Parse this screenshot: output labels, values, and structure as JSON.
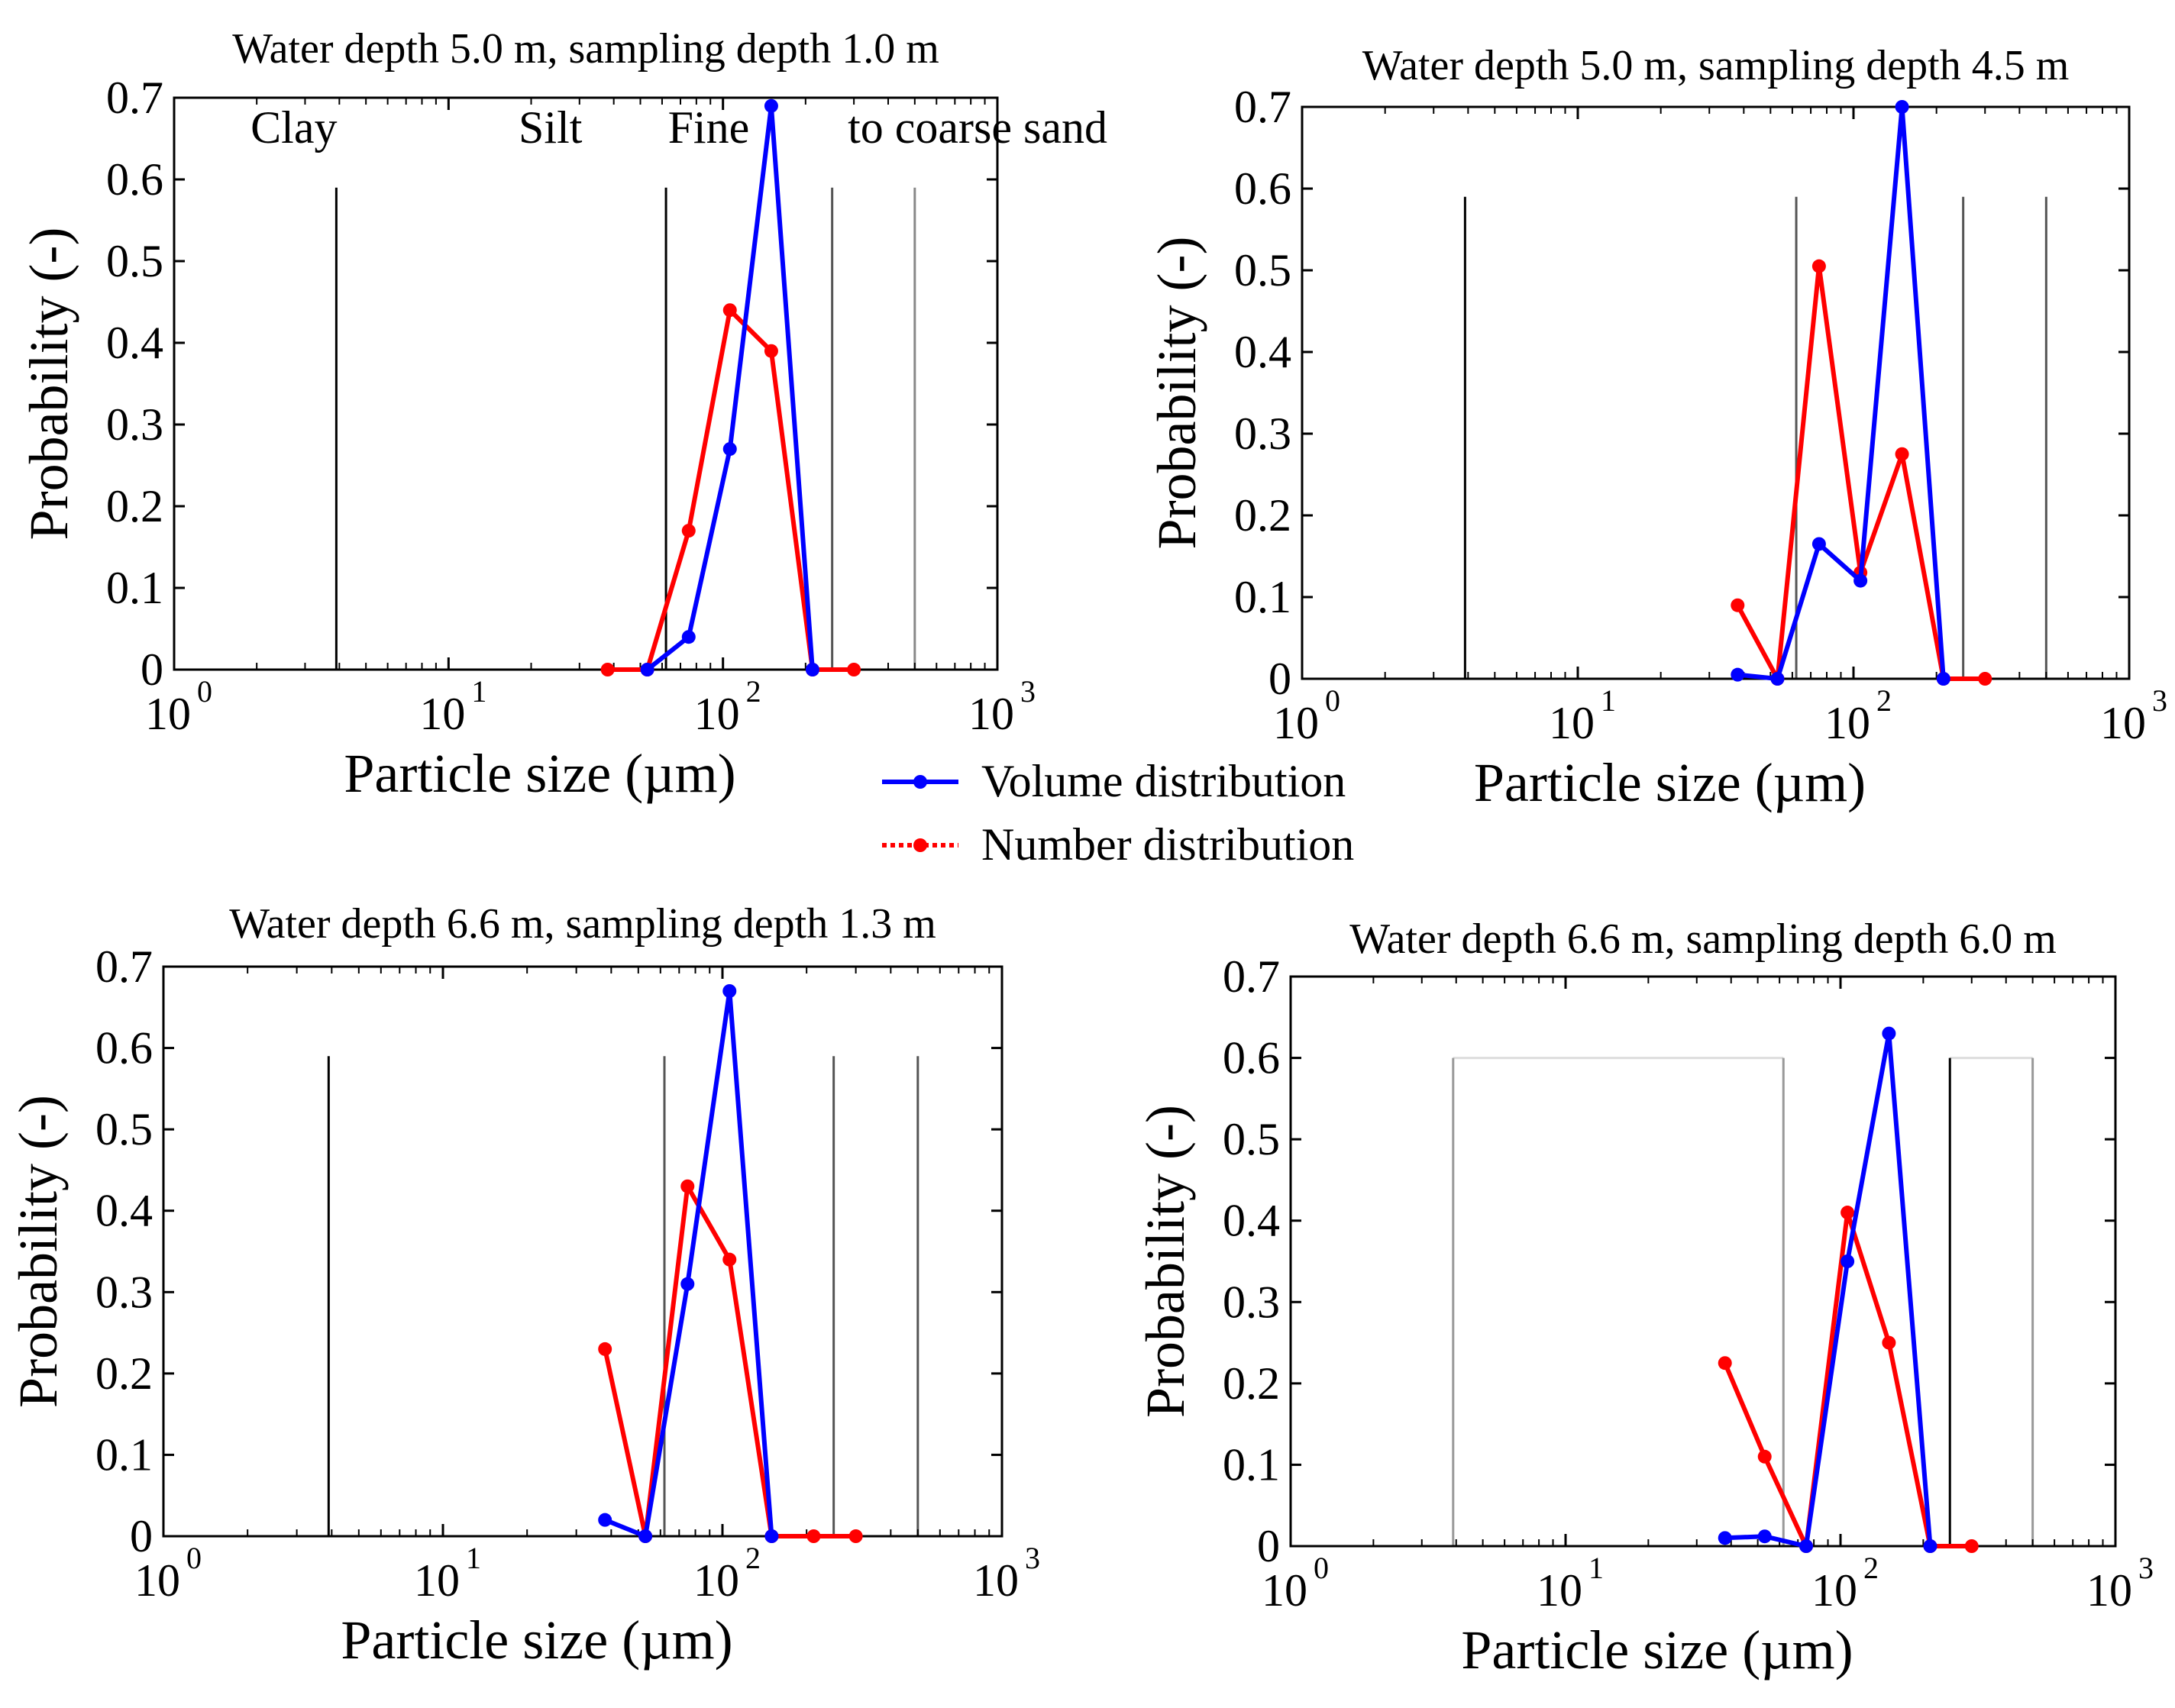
{
  "legend": {
    "items": [
      {
        "label": "Volume distribution",
        "color": "#0000ff",
        "style": "solid"
      },
      {
        "label": "Number distribution",
        "color": "#ff0000",
        "style": "dotted"
      }
    ]
  },
  "chart_data": [
    {
      "type": "line",
      "title": "Water depth 5.0 m, sampling depth 1.0 m",
      "xlabel": "Particle size (µm)",
      "ylabel": "Probability (-)",
      "xscale": "log",
      "xlim": [
        1,
        1000
      ],
      "ylim": [
        0,
        0.7
      ],
      "x_ticks": [
        {
          "base": "10",
          "exp": "0"
        },
        {
          "base": "10",
          "exp": "1"
        },
        {
          "base": "10",
          "exp": "2"
        },
        {
          "base": "10",
          "exp": "3"
        }
      ],
      "y_ticks": [
        "0",
        "0.1",
        "0.2",
        "0.3",
        "0.4",
        "0.5",
        "0.6",
        "0.7"
      ],
      "boundaries": [
        {
          "x": 3.9,
          "ymax": 0.59,
          "color": "#000000"
        },
        {
          "x": 62,
          "ymax": 0.59,
          "color": "#000000"
        },
        {
          "x": 250,
          "ymax": 0.59,
          "color": "#555555"
        },
        {
          "x": 500,
          "ymax": 0.59,
          "color": "#888888"
        }
      ],
      "annotations": [
        {
          "text": "Clay",
          "x": 1.9,
          "y": 0.645
        },
        {
          "text": "Silt",
          "x": 18,
          "y": 0.645
        },
        {
          "text": "Fine",
          "x": 63,
          "y": 0.645
        },
        {
          "text": "to coarse sand",
          "x": 285,
          "y": 0.645
        }
      ],
      "series": [
        {
          "name": "Volume distribution",
          "color": "#0000ff",
          "x": [
            53,
            75,
            106,
            150,
            212
          ],
          "y": [
            0,
            0.04,
            0.27,
            0.69,
            0
          ]
        },
        {
          "name": "Number distribution",
          "color": "#ff0000",
          "x": [
            38,
            53,
            75,
            106,
            150,
            212,
            300
          ],
          "y": [
            0,
            0,
            0.17,
            0.44,
            0.39,
            0,
            0
          ]
        }
      ]
    },
    {
      "type": "line",
      "title": "Water depth 5.0 m, sampling depth 4.5 m",
      "xlabel": "Particle size (µm)",
      "ylabel": "Probability (-)",
      "xscale": "log",
      "xlim": [
        1,
        1000
      ],
      "ylim": [
        0,
        0.7
      ],
      "x_ticks": [
        {
          "base": "10",
          "exp": "0"
        },
        {
          "base": "10",
          "exp": "1"
        },
        {
          "base": "10",
          "exp": "2"
        },
        {
          "base": "10",
          "exp": "3"
        }
      ],
      "y_ticks": [
        "0",
        "0.1",
        "0.2",
        "0.3",
        "0.4",
        "0.5",
        "0.6",
        "0.7"
      ],
      "boundaries": [
        {
          "x": 3.9,
          "ymax": 0.59,
          "color": "#000000"
        },
        {
          "x": 62,
          "ymax": 0.59,
          "color": "#555555"
        },
        {
          "x": 250,
          "ymax": 0.59,
          "color": "#555555"
        },
        {
          "x": 500,
          "ymax": 0.59,
          "color": "#555555"
        }
      ],
      "annotations": [],
      "series": [
        {
          "name": "Volume distribution",
          "color": "#0000ff",
          "x": [
            38,
            53,
            75,
            106,
            150,
            212
          ],
          "y": [
            0.005,
            0,
            0.165,
            0.12,
            0.7,
            0
          ]
        },
        {
          "name": "Number distribution",
          "color": "#ff0000",
          "x": [
            38,
            53,
            75,
            106,
            150,
            212,
            300
          ],
          "y": [
            0.09,
            0,
            0.505,
            0.13,
            0.275,
            0,
            0
          ]
        }
      ]
    },
    {
      "type": "line",
      "title": "Water depth 6.6 m, sampling depth 1.3 m",
      "xlabel": "Particle size (µm)",
      "ylabel": "Probability (-)",
      "xscale": "log",
      "xlim": [
        1,
        1000
      ],
      "ylim": [
        0,
        0.7
      ],
      "x_ticks": [
        {
          "base": "10",
          "exp": "0"
        },
        {
          "base": "10",
          "exp": "1"
        },
        {
          "base": "10",
          "exp": "2"
        },
        {
          "base": "10",
          "exp": "3"
        }
      ],
      "y_ticks": [
        "0",
        "0.1",
        "0.2",
        "0.3",
        "0.4",
        "0.5",
        "0.6",
        "0.7"
      ],
      "boundaries": [
        {
          "x": 3.9,
          "ymax": 0.59,
          "color": "#000000"
        },
        {
          "x": 62,
          "ymax": 0.59,
          "color": "#555555"
        },
        {
          "x": 250,
          "ymax": 0.59,
          "color": "#555555"
        },
        {
          "x": 500,
          "ymax": 0.59,
          "color": "#555555"
        }
      ],
      "annotations": [],
      "series": [
        {
          "name": "Volume distribution",
          "color": "#0000ff",
          "x": [
            38,
            53,
            75,
            106,
            150
          ],
          "y": [
            0.02,
            0,
            0.31,
            0.67,
            0
          ]
        },
        {
          "name": "Number distribution",
          "color": "#ff0000",
          "x": [
            38,
            53,
            75,
            106,
            150,
            212,
            300
          ],
          "y": [
            0.23,
            0,
            0.43,
            0.34,
            0,
            0,
            0
          ]
        }
      ]
    },
    {
      "type": "line",
      "title": "Water depth 6.6 m, sampling depth 6.0 m",
      "xlabel": "Particle size (µm)",
      "ylabel": "Probability (-)",
      "xscale": "log",
      "xlim": [
        1,
        1000
      ],
      "ylim": [
        0,
        0.7
      ],
      "x_ticks": [
        {
          "base": "10",
          "exp": "0"
        },
        {
          "base": "10",
          "exp": "1"
        },
        {
          "base": "10",
          "exp": "2"
        },
        {
          "base": "10",
          "exp": "3"
        }
      ],
      "y_ticks": [
        "0",
        "0.1",
        "0.2",
        "0.3",
        "0.4",
        "0.5",
        "0.6",
        "0.7"
      ],
      "boundaries": [
        {
          "x": 3.9,
          "ymax": 0.6,
          "color": "#999999"
        },
        {
          "x": 62,
          "ymax": 0.6,
          "color": "#999999"
        },
        {
          "x": 250,
          "ymax": 0.6,
          "color": "#000000"
        },
        {
          "x": 500,
          "ymax": 0.6,
          "color": "#999999"
        }
      ],
      "bracket_tops": [
        {
          "from": 3.9,
          "to": 62,
          "y": 0.6,
          "color": "#dddddd"
        },
        {
          "from": 250,
          "to": 500,
          "y": 0.6,
          "color": "#dddddd"
        }
      ],
      "annotations": [],
      "series": [
        {
          "name": "Volume distribution",
          "color": "#0000ff",
          "x": [
            38,
            53,
            75,
            106,
            150,
            212
          ],
          "y": [
            0.01,
            0.012,
            0,
            0.35,
            0.63,
            0
          ]
        },
        {
          "name": "Number distribution",
          "color": "#ff0000",
          "x": [
            38,
            53,
            75,
            106,
            150,
            212,
            300
          ],
          "y": [
            0.225,
            0.11,
            0,
            0.41,
            0.25,
            0,
            0
          ]
        }
      ]
    }
  ]
}
